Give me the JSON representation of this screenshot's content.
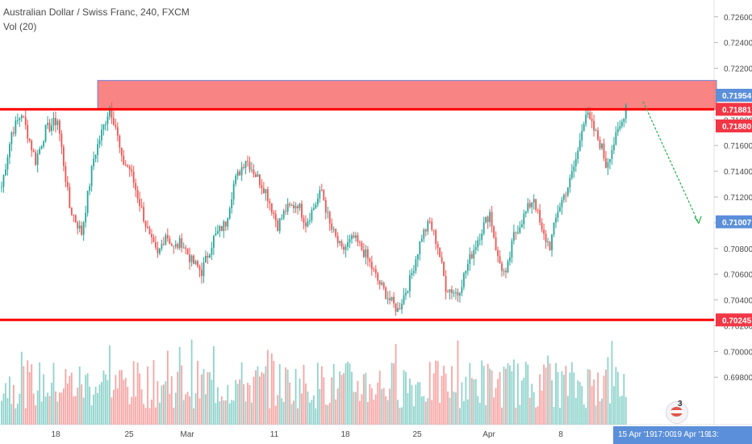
{
  "legend": {
    "symbol": "Australian Dollar / Swiss Franc, 240, FXCM",
    "volume": "Vol (20)"
  },
  "colors": {
    "up": "#26a69a",
    "down": "#ef5350",
    "vol_up": "#8fd3cc",
    "vol_down": "#f6a5a3",
    "line": "#ff0000",
    "zone_fill": "#f55b5b",
    "zone_border": "#6e7fd6",
    "arrow": "#22b14c",
    "axis_text": "#4a4a4a",
    "price_badge_blue": "#5b8fd9",
    "price_badge_red": "#f23645",
    "time_badge": "#5b8fd9"
  },
  "chart_data": {
    "type": "candlestick",
    "title": "Australian Dollar / Swiss Franc, 240, FXCM",
    "y_axis_ticks": [
      "0.72600",
      "0.72400",
      "0.72200",
      "0.72000",
      "0.71800",
      "0.71600",
      "0.71400",
      "0.71200",
      "0.71000",
      "0.70800",
      "0.70600",
      "0.70400",
      "0.70200",
      "0.70000",
      "0.69800"
    ],
    "y_range": [
      0.6972,
      0.7268
    ],
    "x_axis_ticks": [
      "18",
      "25",
      "Mar",
      "11",
      "18",
      "25",
      "Apr",
      "8"
    ],
    "time_labels": [
      "15 Apr '19",
      "17:00",
      "19 Apr '19",
      "13:"
    ],
    "price_badges": [
      {
        "label": "0.71954",
        "kind": "blue"
      },
      {
        "label": "0.71881",
        "kind": "red"
      },
      {
        "label": "0.71880",
        "kind": "red"
      },
      {
        "label": "0.71007",
        "kind": "blue"
      },
      {
        "label": "0.70245",
        "kind": "red"
      }
    ],
    "horizontal_lines": [
      0.71881,
      0.70245
    ],
    "resistance_zone": {
      "from": 0.7188,
      "to": 0.72105,
      "start_date": "Feb 21",
      "end_date": "Apr 19"
    },
    "projection_arrow": {
      "from_price": 0.71954,
      "to_price": 0.71007,
      "from_date": "Apr 12",
      "to_date": "Apr 18"
    },
    "close_path": [
      [
        0,
        0.7128
      ],
      [
        5,
        0.717
      ],
      [
        10,
        0.7185
      ],
      [
        17,
        0.7148
      ],
      [
        22,
        0.7172
      ],
      [
        28,
        0.718
      ],
      [
        34,
        0.7112
      ],
      [
        40,
        0.7092
      ],
      [
        46,
        0.715
      ],
      [
        52,
        0.718
      ],
      [
        54,
        0.719
      ],
      [
        57,
        0.7175
      ],
      [
        60,
        0.7148
      ],
      [
        64,
        0.7142
      ],
      [
        70,
        0.711
      ],
      [
        74,
        0.7088
      ],
      [
        78,
        0.7074
      ],
      [
        82,
        0.7092
      ],
      [
        86,
        0.708
      ],
      [
        90,
        0.7085
      ],
      [
        95,
        0.707
      ],
      [
        100,
        0.7062
      ],
      [
        106,
        0.7088
      ],
      [
        112,
        0.71
      ],
      [
        116,
        0.713
      ],
      [
        122,
        0.715
      ],
      [
        126,
        0.714
      ],
      [
        132,
        0.7125
      ],
      [
        138,
        0.7098
      ],
      [
        142,
        0.711
      ],
      [
        148,
        0.7115
      ],
      [
        152,
        0.71
      ],
      [
        156,
        0.7112
      ],
      [
        160,
        0.7125
      ],
      [
        164,
        0.7098
      ],
      [
        170,
        0.7078
      ],
      [
        176,
        0.7088
      ],
      [
        182,
        0.7075
      ],
      [
        188,
        0.7055
      ],
      [
        194,
        0.704
      ],
      [
        198,
        0.7032
      ],
      [
        204,
        0.7055
      ],
      [
        210,
        0.709
      ],
      [
        214,
        0.71
      ],
      [
        218,
        0.7082
      ],
      [
        222,
        0.705
      ],
      [
        228,
        0.7045
      ],
      [
        234,
        0.7072
      ],
      [
        240,
        0.7095
      ],
      [
        244,
        0.7108
      ],
      [
        248,
        0.7072
      ],
      [
        252,
        0.7058
      ],
      [
        256,
        0.709
      ],
      [
        262,
        0.7108
      ],
      [
        266,
        0.712
      ],
      [
        270,
        0.7092
      ],
      [
        274,
        0.7082
      ],
      [
        278,
        0.711
      ],
      [
        284,
        0.7132
      ],
      [
        288,
        0.7155
      ],
      [
        290,
        0.7175
      ],
      [
        292,
        0.7185
      ],
      [
        296,
        0.7172
      ],
      [
        300,
        0.7158
      ],
      [
        302,
        0.7145
      ],
      [
        306,
        0.7162
      ],
      [
        310,
        0.7178
      ],
      [
        312,
        0.7192
      ]
    ]
  }
}
